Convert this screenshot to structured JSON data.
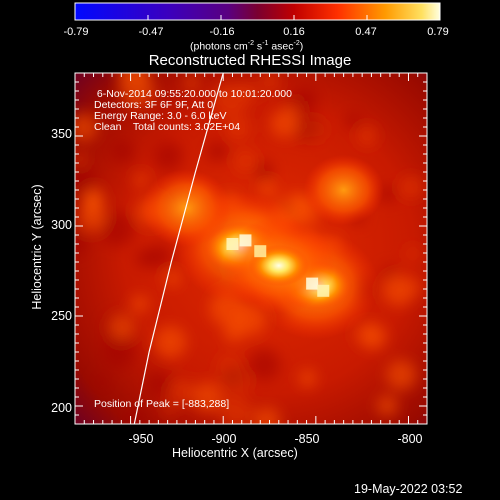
{
  "chart_data": {
    "type": "heatmap",
    "title": "Reconstructed RHESSI Image",
    "xlabel": "Heliocentric X (arcsec)",
    "ylabel": "Heliocentric Y (arcsec)",
    "xlim": [
      -980,
      -790
    ],
    "ylim": [
      190,
      385
    ],
    "x_ticks": [
      "-950",
      "-900",
      "-850",
      "-800"
    ],
    "y_ticks": [
      "200",
      "250",
      "300",
      "350"
    ],
    "colorbar": {
      "ticks": [
        "-0.79",
        "-0.47",
        "-0.16",
        "0.16",
        "0.47",
        "0.79"
      ],
      "unit_main": "(photons cm",
      "unit_exp1": "-2",
      "unit_mid": " s",
      "unit_exp2": "-1",
      "unit_end": " asec",
      "unit_exp3": "-2",
      "unit_close": ")"
    },
    "sources": [
      {
        "x": -890,
        "y": 288,
        "level": 1.0
      },
      {
        "x": -850,
        "y": 267,
        "level": 0.95
      },
      {
        "x": -870,
        "y": 278,
        "level": 0.8
      },
      {
        "x": -920,
        "y": 310,
        "level": 0.55
      },
      {
        "x": -835,
        "y": 320,
        "level": 0.45
      }
    ],
    "peak": {
      "x": -883,
      "y": 288
    },
    "limb": [
      [
        -948,
        190
      ],
      [
        -940,
        230
      ],
      [
        -928,
        280
      ],
      [
        -915,
        330
      ],
      [
        -900,
        385
      ]
    ]
  },
  "info": {
    "line1": " 6-Nov-2014 09:55:20.000 to 10:01:20.000",
    "line2": "Detectors: 3F 6F 9F, Att 0",
    "line3": "Energy Range: 3.0 - 6.0 keV",
    "line4": "Clean    Total counts: 3.02E+04"
  },
  "peak_text": "Position of Peak = [-883,288]",
  "footer": "19-May-2022 03:52"
}
